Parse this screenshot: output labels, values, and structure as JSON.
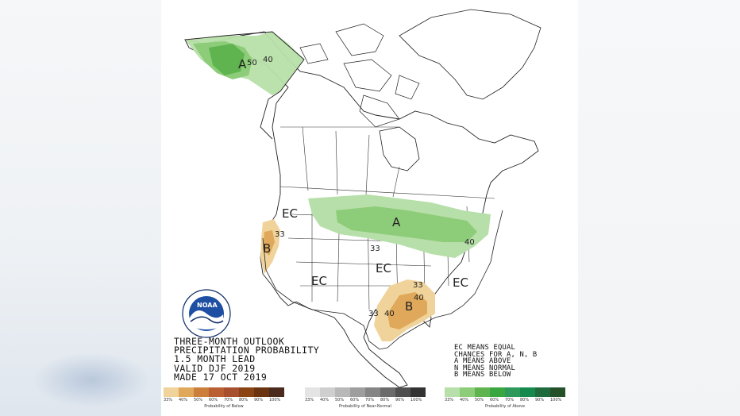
{
  "title_lines": [
    "THREE-MONTH OUTLOOK",
    "PRECIPITATION PROBABILITY",
    "1.5 MONTH LEAD",
    "VALID DJF 2019",
    "MADE 17 OCT 2019"
  ],
  "legend_note_lines": [
    "EC MEANS EQUAL",
    "CHANCES FOR A, N, B",
    "A MEANS ABOVE",
    "N MEANS NORMAL",
    "B MEANS BELOW"
  ],
  "map_labels": {
    "alaska_A": "A",
    "alaska_50": "50",
    "alaska_40": "40",
    "midwest_A": "A",
    "ne_40": "40",
    "west_EC": "EC",
    "ca_B": "B",
    "ca_33": "33",
    "central_33": "33",
    "central_EC": "EC",
    "sw_EC": "EC",
    "se_EC": "EC",
    "tx_B": "B",
    "tx_33a": "33",
    "tx_40": "40",
    "tx_33b": "33",
    "tx_40b": "40"
  },
  "scales": [
    {
      "caption": "Probability of Below",
      "ticks": [
        "33%",
        "40%",
        "50%",
        "60%",
        "70%",
        "80%",
        "90%",
        "100%"
      ],
      "colors": [
        "#f0d39a",
        "#dfa85a",
        "#cc7f3c",
        "#b95f33",
        "#a84f30",
        "#8a4312",
        "#6b3410",
        "#4a2a1d"
      ]
    },
    {
      "caption": "Probability of Near-Normal",
      "ticks": [
        "33%",
        "40%",
        "50%",
        "60%",
        "70%",
        "80%",
        "90%",
        "100%"
      ],
      "colors": [
        "#e4e4e4",
        "#cfcfcf",
        "#b8b8b8",
        "#9e9e9e",
        "#858585",
        "#6b6b6b",
        "#4f4f4f",
        "#333333"
      ]
    },
    {
      "caption": "Probability of Above",
      "ticks": [
        "33%",
        "40%",
        "50%",
        "60%",
        "70%",
        "80%",
        "90%",
        "100%"
      ],
      "colors": [
        "#b7dfa9",
        "#8dcc78",
        "#5fb44f",
        "#3aa640",
        "#2d9a5b",
        "#168a4c",
        "#1f6b3d",
        "#24512a"
      ]
    }
  ],
  "colors": {
    "above_33": "#b7dfa9",
    "above_40": "#8dcc78",
    "above_50": "#5fb44f",
    "below_33": "#f0d39a",
    "below_40": "#dfa85a",
    "logo_blue": "#1f4fa3",
    "logo_navy": "#0c2a66"
  },
  "logo": {
    "name": "noaa-logo",
    "text": "NOAA"
  }
}
